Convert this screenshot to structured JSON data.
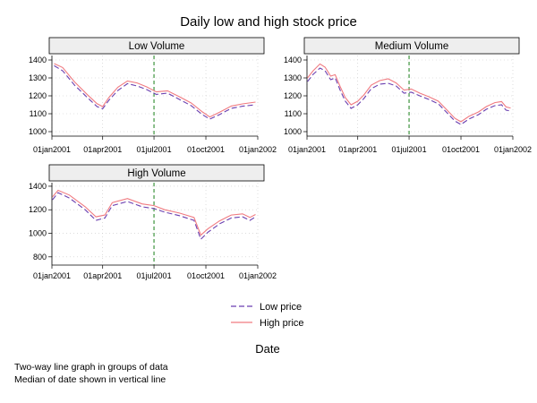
{
  "chart_data": {
    "type": "line",
    "title": "Daily low and high stock price",
    "xlabel": "Date",
    "legend": {
      "placement": "bottom-center",
      "entries": [
        {
          "label": "Low price",
          "color": "#6a3fb0",
          "style": "dashed"
        },
        {
          "label": "High price",
          "color": "#f07a80",
          "style": "solid"
        }
      ]
    },
    "x_ticks": [
      "01jan2001",
      "01apr2001",
      "01jul2001",
      "01oct2001",
      "01jan2002"
    ],
    "x_range": [
      "2001-01-01",
      "2002-01-01"
    ],
    "median_line": {
      "date": "2001-07-01",
      "color": "#2e8b2e",
      "style": "dashed"
    },
    "grid": true,
    "panels": [
      {
        "name": "Low Volume",
        "y_ticks": [
          1000,
          1100,
          1200,
          1300,
          1400
        ],
        "y_range": [
          975,
          1425
        ],
        "series": [
          {
            "name": "Low price",
            "points": [
              [
                "2001-01-05",
                1368
              ],
              [
                "2001-01-20",
                1340
              ],
              [
                "2001-02-10",
                1260
              ],
              [
                "2001-03-05",
                1190
              ],
              [
                "2001-03-22",
                1140
              ],
              [
                "2001-04-01",
                1128
              ],
              [
                "2001-04-12",
                1175
              ],
              [
                "2001-04-28",
                1230
              ],
              [
                "2001-05-15",
                1268
              ],
              [
                "2001-06-01",
                1255
              ],
              [
                "2001-06-18",
                1235
              ],
              [
                "2001-07-05",
                1208
              ],
              [
                "2001-07-25",
                1215
              ],
              [
                "2001-08-15",
                1180
              ],
              [
                "2001-09-05",
                1145
              ],
              [
                "2001-09-25",
                1095
              ],
              [
                "2001-10-08",
                1070
              ],
              [
                "2001-10-25",
                1095
              ],
              [
                "2001-11-15",
                1130
              ],
              [
                "2001-12-05",
                1142
              ],
              [
                "2001-12-28",
                1150
              ]
            ]
          },
          {
            "name": "High price",
            "points": [
              [
                "2001-01-05",
                1380
              ],
              [
                "2001-01-20",
                1358
              ],
              [
                "2001-02-10",
                1278
              ],
              [
                "2001-03-05",
                1206
              ],
              [
                "2001-03-22",
                1156
              ],
              [
                "2001-04-01",
                1140
              ],
              [
                "2001-04-12",
                1190
              ],
              [
                "2001-04-28",
                1248
              ],
              [
                "2001-05-15",
                1283
              ],
              [
                "2001-06-01",
                1272
              ],
              [
                "2001-06-18",
                1250
              ],
              [
                "2001-07-05",
                1222
              ],
              [
                "2001-07-25",
                1228
              ],
              [
                "2001-08-15",
                1195
              ],
              [
                "2001-09-05",
                1160
              ],
              [
                "2001-09-25",
                1110
              ],
              [
                "2001-10-08",
                1082
              ],
              [
                "2001-10-25",
                1108
              ],
              [
                "2001-11-15",
                1143
              ],
              [
                "2001-12-05",
                1155
              ],
              [
                "2001-12-28",
                1165
              ]
            ]
          }
        ]
      },
      {
        "name": "Medium Volume",
        "y_ticks": [
          1000,
          1100,
          1200,
          1300,
          1400
        ],
        "y_range": [
          975,
          1425
        ],
        "series": [
          {
            "name": "Low price",
            "points": [
              [
                "2001-01-02",
                1280
              ],
              [
                "2001-01-12",
                1320
              ],
              [
                "2001-01-24",
                1355
              ],
              [
                "2001-02-02",
                1340
              ],
              [
                "2001-02-12",
                1290
              ],
              [
                "2001-02-20",
                1300
              ],
              [
                "2001-03-01",
                1230
              ],
              [
                "2001-03-10",
                1170
              ],
              [
                "2001-03-20",
                1130
              ],
              [
                "2001-04-01",
                1150
              ],
              [
                "2001-04-12",
                1185
              ],
              [
                "2001-04-25",
                1240
              ],
              [
                "2001-05-10",
                1265
              ],
              [
                "2001-05-25",
                1270
              ],
              [
                "2001-06-08",
                1255
              ],
              [
                "2001-06-22",
                1215
              ],
              [
                "2001-07-05",
                1220
              ],
              [
                "2001-07-20",
                1200
              ],
              [
                "2001-08-05",
                1180
              ],
              [
                "2001-08-22",
                1155
              ],
              [
                "2001-09-05",
                1110
              ],
              [
                "2001-09-20",
                1060
              ],
              [
                "2001-10-01",
                1040
              ],
              [
                "2001-10-15",
                1070
              ],
              [
                "2001-11-01",
                1095
              ],
              [
                "2001-11-15",
                1125
              ],
              [
                "2001-11-30",
                1145
              ],
              [
                "2001-12-12",
                1150
              ],
              [
                "2001-12-20",
                1120
              ],
              [
                "2001-12-28",
                1115
              ]
            ]
          },
          {
            "name": "High price",
            "points": [
              [
                "2001-01-02",
                1300
              ],
              [
                "2001-01-12",
                1340
              ],
              [
                "2001-01-24",
                1378
              ],
              [
                "2001-02-02",
                1360
              ],
              [
                "2001-02-12",
                1310
              ],
              [
                "2001-02-20",
                1318
              ],
              [
                "2001-03-01",
                1250
              ],
              [
                "2001-03-10",
                1190
              ],
              [
                "2001-03-20",
                1150
              ],
              [
                "2001-04-01",
                1170
              ],
              [
                "2001-04-12",
                1205
              ],
              [
                "2001-04-25",
                1260
              ],
              [
                "2001-05-10",
                1285
              ],
              [
                "2001-05-25",
                1295
              ],
              [
                "2001-06-08",
                1272
              ],
              [
                "2001-06-22",
                1232
              ],
              [
                "2001-07-05",
                1238
              ],
              [
                "2001-07-20",
                1215
              ],
              [
                "2001-08-05",
                1195
              ],
              [
                "2001-08-22",
                1170
              ],
              [
                "2001-09-05",
                1125
              ],
              [
                "2001-09-20",
                1075
              ],
              [
                "2001-10-01",
                1055
              ],
              [
                "2001-10-15",
                1085
              ],
              [
                "2001-11-01",
                1110
              ],
              [
                "2001-11-15",
                1140
              ],
              [
                "2001-11-30",
                1162
              ],
              [
                "2001-12-12",
                1168
              ],
              [
                "2001-12-20",
                1138
              ],
              [
                "2001-12-28",
                1132
              ]
            ]
          }
        ]
      },
      {
        "name": "High Volume",
        "y_ticks": [
          800,
          1000,
          1200,
          1400
        ],
        "y_range": [
          730,
          1430
        ],
        "series": [
          {
            "name": "Low price",
            "points": [
              [
                "2001-01-02",
                1285
              ],
              [
                "2001-01-12",
                1345
              ],
              [
                "2001-02-01",
                1300
              ],
              [
                "2001-03-01",
                1200
              ],
              [
                "2001-03-20",
                1110
              ],
              [
                "2001-04-05",
                1130
              ],
              [
                "2001-04-18",
                1235
              ],
              [
                "2001-05-15",
                1270
              ],
              [
                "2001-06-10",
                1225
              ],
              [
                "2001-07-01",
                1210
              ],
              [
                "2001-07-20",
                1180
              ],
              [
                "2001-08-15",
                1150
              ],
              [
                "2001-09-10",
                1110
              ],
              [
                "2001-09-22",
                950
              ],
              [
                "2001-10-05",
                1010
              ],
              [
                "2001-10-25",
                1080
              ],
              [
                "2001-11-15",
                1130
              ],
              [
                "2001-12-05",
                1140
              ],
              [
                "2001-12-18",
                1110
              ],
              [
                "2001-12-28",
                1140
              ]
            ]
          },
          {
            "name": "High price",
            "points": [
              [
                "2001-01-02",
                1310
              ],
              [
                "2001-01-12",
                1365
              ],
              [
                "2001-02-01",
                1325
              ],
              [
                "2001-03-01",
                1225
              ],
              [
                "2001-03-20",
                1140
              ],
              [
                "2001-04-05",
                1155
              ],
              [
                "2001-04-18",
                1260
              ],
              [
                "2001-05-15",
                1295
              ],
              [
                "2001-06-10",
                1250
              ],
              [
                "2001-07-01",
                1235
              ],
              [
                "2001-07-20",
                1200
              ],
              [
                "2001-08-15",
                1172
              ],
              [
                "2001-09-10",
                1135
              ],
              [
                "2001-09-22",
                985
              ],
              [
                "2001-10-05",
                1040
              ],
              [
                "2001-10-25",
                1105
              ],
              [
                "2001-11-15",
                1155
              ],
              [
                "2001-12-05",
                1165
              ],
              [
                "2001-12-18",
                1135
              ],
              [
                "2001-12-28",
                1160
              ]
            ]
          }
        ]
      }
    ]
  },
  "notes": [
    "Two-way line graph in groups of data",
    "Median of date shown in vertical line"
  ]
}
